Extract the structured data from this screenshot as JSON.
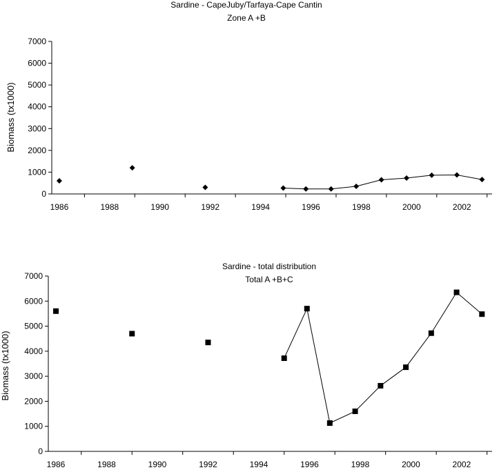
{
  "chart_data": [
    {
      "type": "line",
      "title": "Sardine - CapeJuby/Tarfaya-Cape Cantin",
      "subtitle": "Zone A +B",
      "ylabel": "Biomass (tx1000)",
      "xlabel": "",
      "ylim": [
        0,
        7000
      ],
      "yticks": [
        0,
        1000,
        2000,
        3000,
        4000,
        5000,
        6000,
        7000
      ],
      "xlim": [
        1985.7,
        2003.2
      ],
      "xticks": [
        1986,
        1988,
        1990,
        1992,
        1994,
        1996,
        1998,
        2000,
        2002
      ],
      "grid": false,
      "marker": "diamond",
      "isolated_points": [
        {
          "x": 1986.0,
          "y": 600
        },
        {
          "x": 1988.9,
          "y": 1200
        },
        {
          "x": 1991.8,
          "y": 300
        }
      ],
      "series": [
        {
          "x": [
            1994.9,
            1995.8,
            1996.8,
            1997.8,
            1998.8,
            1999.8,
            2000.8,
            2001.8,
            2002.8
          ],
          "values": [
            270,
            230,
            230,
            350,
            650,
            730,
            860,
            870,
            660
          ]
        }
      ]
    },
    {
      "type": "line",
      "title": "Sardine - total distribution",
      "subtitle": "Total A +B+C",
      "ylabel": "Biomass (tx1000)",
      "xlabel": "",
      "ylim": [
        0,
        7000
      ],
      "yticks": [
        0,
        1000,
        2000,
        3000,
        4000,
        5000,
        6000,
        7000
      ],
      "xlim": [
        1985.7,
        2003.2
      ],
      "xticks": [
        1986,
        1988,
        1990,
        1992,
        1994,
        1996,
        1998,
        2000,
        2002
      ],
      "grid": false,
      "marker": "square",
      "isolated_points": [
        {
          "x": 1986.0,
          "y": 5600
        },
        {
          "x": 1989.0,
          "y": 4700
        },
        {
          "x": 1992.0,
          "y": 4350
        }
      ],
      "series": [
        {
          "x": [
            1995.0,
            1995.9,
            1996.8,
            1997.8,
            1998.8,
            1999.8,
            2000.8,
            2001.8,
            2002.8
          ],
          "values": [
            3720,
            5700,
            1130,
            1600,
            2620,
            3360,
            4720,
            6350,
            5480
          ]
        }
      ]
    }
  ]
}
